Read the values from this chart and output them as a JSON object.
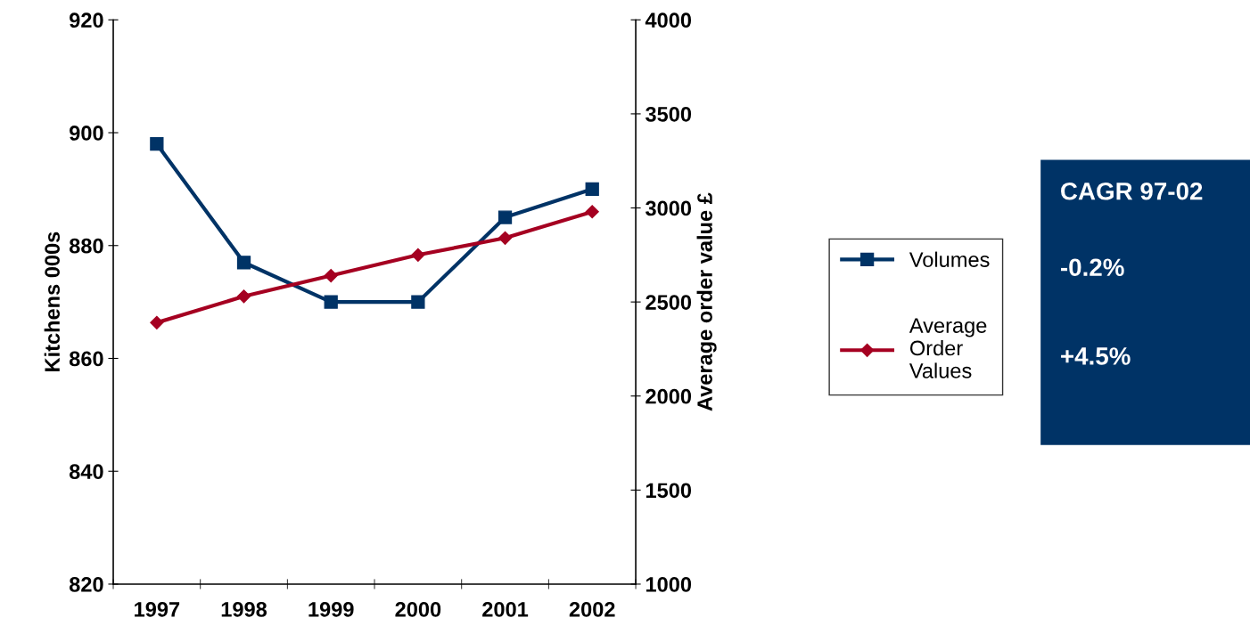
{
  "chart_data": {
    "type": "line",
    "categories": [
      "1997",
      "1998",
      "1999",
      "2000",
      "2001",
      "2002"
    ],
    "series": [
      {
        "name": "Volumes",
        "color": "#003366",
        "marker": "square",
        "values": [
          898,
          877,
          870,
          870,
          885,
          890
        ]
      },
      {
        "name": "Average Order Values",
        "color": "#a50021",
        "marker": "diamond",
        "axis": "y2",
        "values": [
          2390,
          2530,
          2640,
          2750,
          2840,
          2980
        ]
      }
    ],
    "ylabel": "Kitchens 000s",
    "y2label": "Average order value £",
    "ylim": [
      820,
      920
    ],
    "yticks": [
      820,
      840,
      860,
      880,
      900,
      920
    ],
    "y2lim": [
      1000,
      4000
    ],
    "y2ticks": [
      1000,
      1500,
      2000,
      2500,
      3000,
      3500,
      4000
    ],
    "grid": false,
    "legend": "right",
    "line_style": "solid",
    "annotations": [
      "CAGR 97-02",
      "-0.2%",
      "+4.5%"
    ]
  }
}
